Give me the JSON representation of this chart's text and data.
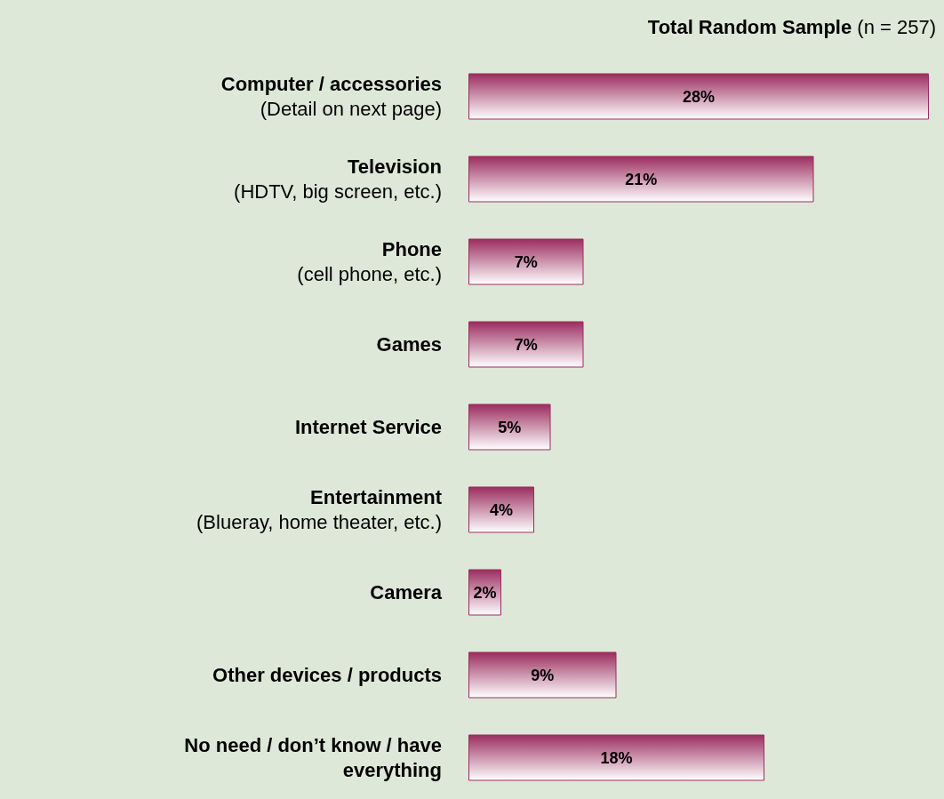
{
  "chart_data": {
    "type": "bar",
    "orientation": "horizontal",
    "title": "Total Random Sample",
    "subtitle": "(n = 257)",
    "categories": [
      "Computer / accessories\n(Detail on next page)",
      "Television\n(HDTV, big screen, etc.)",
      "Phone\n(cell phone, etc.)",
      "Games",
      "Internet Service",
      "Entertainment\n(Blueray, home theater, etc.)",
      "Camera",
      "Other devices / products",
      "No need / don’t know / have everything"
    ],
    "values": [
      28,
      21,
      7,
      7,
      5,
      4,
      2,
      9,
      18
    ],
    "value_labels": [
      "28%",
      "21%",
      "7%",
      "7%",
      "5%",
      "4%",
      "2%",
      "9%",
      "18%"
    ],
    "color": "#9b2d5f",
    "xlim": [
      0,
      28
    ],
    "grid": false
  }
}
